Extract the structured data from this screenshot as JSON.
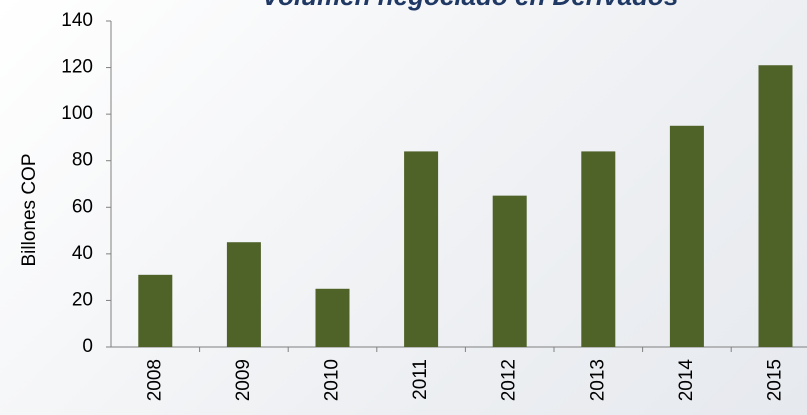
{
  "chart_data": {
    "type": "bar",
    "title": "Volumen negociado en Derivados",
    "ylabel": "Billones COP",
    "categories": [
      "2008",
      "2009",
      "2010",
      "2011",
      "2012",
      "2013",
      "2014",
      "2015"
    ],
    "values": [
      31,
      45,
      25,
      84,
      65,
      84,
      95,
      121
    ],
    "color": "#4f6228",
    "ylim": [
      0,
      140
    ],
    "yticks": [
      0,
      20,
      40,
      60,
      80,
      100,
      120,
      140
    ],
    "grid": false
  }
}
